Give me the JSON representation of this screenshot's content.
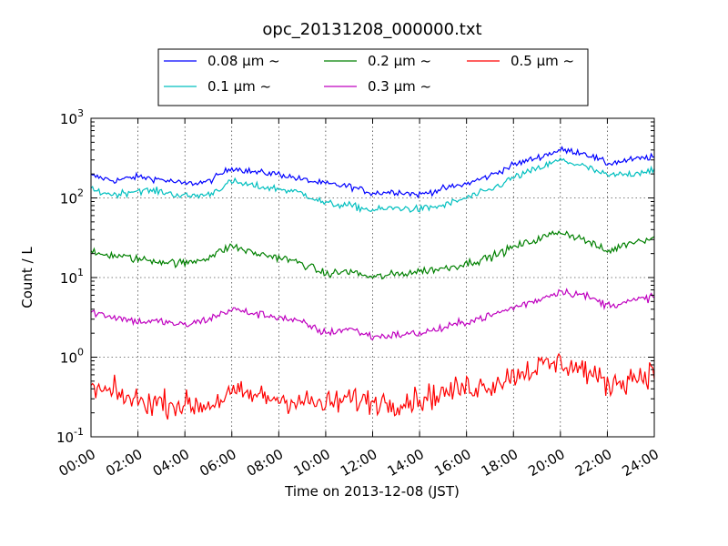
{
  "chart_data": {
    "type": "line",
    "title": "opc_20131208_000000.txt",
    "xlabel": "Time on 2013-12-08 (JST)",
    "ylabel": "Count / L",
    "y_scale": "log",
    "ylim": [
      0.1,
      1000
    ],
    "xlim": [
      "00:00",
      "24:00"
    ],
    "x_tick_labels": [
      "00:00",
      "02:00",
      "04:00",
      "06:00",
      "08:00",
      "10:00",
      "12:00",
      "14:00",
      "16:00",
      "18:00",
      "20:00",
      "22:00",
      "24:00"
    ],
    "y_tick_labels": [
      {
        "base": "10",
        "exp": "-1"
      },
      {
        "base": "10",
        "exp": "0"
      },
      {
        "base": "10",
        "exp": "1"
      },
      {
        "base": "10",
        "exp": "2"
      },
      {
        "base": "10",
        "exp": "3"
      }
    ],
    "grid": true,
    "legend_position": "top-center",
    "x": [
      "00:00",
      "01:00",
      "02:00",
      "03:00",
      "04:00",
      "05:00",
      "06:00",
      "07:00",
      "08:00",
      "09:00",
      "10:00",
      "11:00",
      "12:00",
      "13:00",
      "14:00",
      "15:00",
      "16:00",
      "17:00",
      "18:00",
      "19:00",
      "20:00",
      "21:00",
      "22:00",
      "23:00",
      "24:00"
    ],
    "series": [
      {
        "name": "0.08 μm ~",
        "color": "#0000ff",
        "noise": 0.04,
        "values": [
          190,
          165,
          185,
          170,
          150,
          160,
          240,
          210,
          200,
          170,
          150,
          140,
          115,
          120,
          110,
          130,
          150,
          190,
          260,
          320,
          400,
          370,
          270,
          300,
          330
        ]
      },
      {
        "name": "0.1 μm ~",
        "color": "#00bfbf",
        "noise": 0.045,
        "values": [
          125,
          110,
          125,
          120,
          105,
          110,
          160,
          140,
          130,
          115,
          85,
          80,
          70,
          75,
          72,
          80,
          100,
          125,
          180,
          230,
          300,
          250,
          190,
          200,
          230
        ]
      },
      {
        "name": "0.2 μm ~",
        "color": "#008000",
        "noise": 0.05,
        "values": [
          20,
          19,
          17,
          16,
          15,
          18,
          25,
          20,
          18,
          15,
          11,
          12,
          10,
          11,
          12,
          13,
          15,
          18,
          24,
          30,
          38,
          30,
          21,
          28,
          32
        ]
      },
      {
        "name": "0.3 μm ~",
        "color": "#bf00bf",
        "noise": 0.05,
        "values": [
          3.7,
          3.2,
          2.8,
          2.8,
          2.5,
          3.0,
          4.0,
          3.5,
          3.2,
          2.7,
          2.0,
          2.3,
          1.8,
          1.9,
          2.0,
          2.3,
          2.8,
          3.3,
          4.2,
          5.2,
          6.8,
          6.0,
          4.5,
          5.0,
          5.8
        ]
      },
      {
        "name": "0.5 μm ~",
        "color": "#ff0000",
        "noise": 0.16,
        "values": [
          0.4,
          0.35,
          0.28,
          0.27,
          0.25,
          0.25,
          0.35,
          0.33,
          0.3,
          0.28,
          0.25,
          0.3,
          0.28,
          0.27,
          0.3,
          0.35,
          0.42,
          0.45,
          0.6,
          0.75,
          0.85,
          0.7,
          0.45,
          0.55,
          0.65
        ]
      }
    ]
  }
}
